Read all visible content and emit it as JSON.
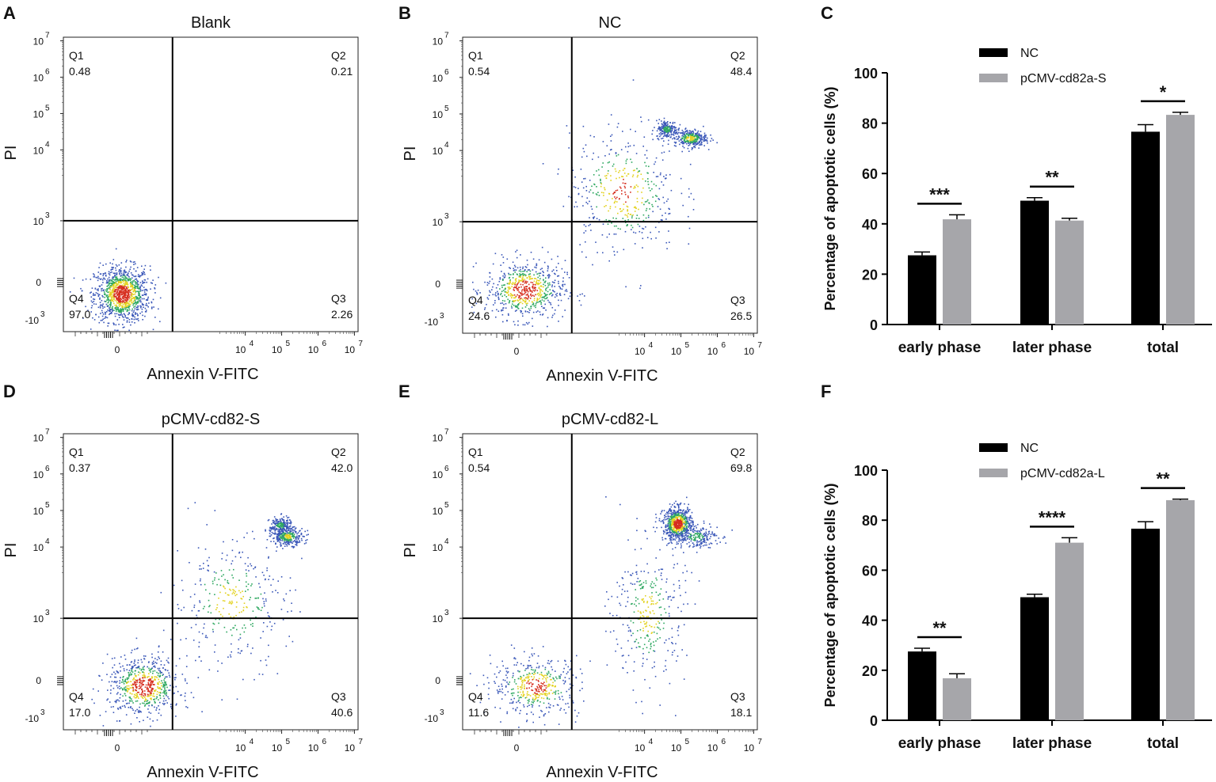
{
  "chart_data": [
    {
      "type": "scatter",
      "panel": "A",
      "title": "Blank",
      "xlabel": "Annexin V-FITC",
      "ylabel": "PI",
      "quadrants": [
        {
          "name": "Q1",
          "value": "0.48"
        },
        {
          "name": "Q2",
          "value": "0.21"
        },
        {
          "name": "Q3",
          "value": "2.26"
        },
        {
          "name": "Q4",
          "value": "97.0"
        }
      ],
      "clusters": [
        {
          "cx": 0.6,
          "cy": 0.05,
          "sx": 0.38,
          "sy": 0.38,
          "n": 1100
        }
      ]
    },
    {
      "type": "scatter",
      "panel": "B",
      "title": "NC",
      "xlabel": "Annexin V-FITC",
      "ylabel": "PI",
      "quadrants": [
        {
          "name": "Q1",
          "value": "0.54"
        },
        {
          "name": "Q2",
          "value": "48.4"
        },
        {
          "name": "Q3",
          "value": "26.5"
        },
        {
          "name": "Q4",
          "value": "24.6"
        }
      ],
      "clusters": [
        {
          "cx": 0.7,
          "cy": 0.2,
          "sx": 0.55,
          "sy": 0.4,
          "n": 650
        },
        {
          "cx": 4.6,
          "cy": 4.6,
          "sx": 0.15,
          "sy": 0.12,
          "n": 200
        },
        {
          "cx": 5.25,
          "cy": 4.35,
          "sx": 0.22,
          "sy": 0.12,
          "n": 320
        },
        {
          "cx": 3.4,
          "cy": 2.9,
          "sx": 0.75,
          "sy": 0.85,
          "n": 420
        }
      ]
    },
    {
      "type": "bar",
      "panel": "C",
      "ylabel": "Percentage of apoptotic cells (%)",
      "categories": [
        "early phase",
        "later phase",
        "total"
      ],
      "ylim": [
        0,
        100
      ],
      "yticks": [
        "0",
        "20",
        "40",
        "60",
        "80",
        "100"
      ],
      "series": [
        {
          "name": "NC",
          "color": "#000000",
          "values": [
            27.5,
            49.2,
            76.6
          ],
          "errors": [
            1.3,
            1.2,
            2.8
          ]
        },
        {
          "name": "pCMV-cd82a-S",
          "color": "#a6a6aa",
          "values": [
            41.8,
            41.3,
            83.3
          ],
          "errors": [
            1.8,
            0.9,
            1.0
          ]
        }
      ],
      "significance": [
        "***",
        "**",
        "*"
      ]
    },
    {
      "type": "scatter",
      "panel": "D",
      "title": "pCMV-cd82-S",
      "xlabel": "Annexin V-FITC",
      "ylabel": "PI",
      "quadrants": [
        {
          "name": "Q1",
          "value": "0.37"
        },
        {
          "name": "Q2",
          "value": "42.0"
        },
        {
          "name": "Q3",
          "value": "40.6"
        },
        {
          "name": "Q4",
          "value": "17.0"
        }
      ],
      "clusters": [
        {
          "cx": 1.2,
          "cy": 0.2,
          "sx": 0.5,
          "sy": 0.4,
          "n": 650
        },
        {
          "cx": 4.95,
          "cy": 4.6,
          "sx": 0.15,
          "sy": 0.12,
          "n": 200
        },
        {
          "cx": 5.15,
          "cy": 4.3,
          "sx": 0.22,
          "sy": 0.12,
          "n": 300
        },
        {
          "cx": 3.6,
          "cy": 2.5,
          "sx": 0.8,
          "sy": 0.9,
          "n": 320
        }
      ]
    },
    {
      "type": "scatter",
      "panel": "E",
      "title": "pCMV-cd82-L",
      "xlabel": "Annexin V-FITC",
      "ylabel": "PI",
      "quadrants": [
        {
          "name": "Q1",
          "value": "0.54"
        },
        {
          "name": "Q2",
          "value": "69.8"
        },
        {
          "name": "Q3",
          "value": "18.1"
        },
        {
          "name": "Q4",
          "value": "11.6"
        }
      ],
      "clusters": [
        {
          "cx": 1.0,
          "cy": 0.2,
          "sx": 0.6,
          "sy": 0.4,
          "n": 450
        },
        {
          "cx": 4.9,
          "cy": 4.65,
          "sx": 0.2,
          "sy": 0.22,
          "n": 700
        },
        {
          "cx": 5.4,
          "cy": 4.3,
          "sx": 0.3,
          "sy": 0.15,
          "n": 200
        },
        {
          "cx": 4.1,
          "cy": 2.2,
          "sx": 0.5,
          "sy": 1.0,
          "n": 320
        }
      ]
    },
    {
      "type": "bar",
      "panel": "F",
      "ylabel": "Percentage of apoptotic cells (%)",
      "categories": [
        "early phase",
        "later phase",
        "total"
      ],
      "ylim": [
        0,
        100
      ],
      "yticks": [
        "0",
        "20",
        "40",
        "60",
        "80",
        "100"
      ],
      "series": [
        {
          "name": "NC",
          "color": "#000000",
          "values": [
            27.5,
            49.2,
            76.6
          ],
          "errors": [
            1.3,
            1.2,
            2.8
          ]
        },
        {
          "name": "pCMV-cd82a-L",
          "color": "#a6a6aa",
          "values": [
            16.8,
            71.0,
            88.0
          ],
          "errors": [
            1.8,
            2.0,
            0.4
          ]
        }
      ],
      "significance": [
        "**",
        "****",
        "**"
      ]
    }
  ],
  "panel_letters": [
    "A",
    "B",
    "C",
    "D",
    "E",
    "F"
  ],
  "flow_axis": {
    "y_tick_bases": [
      "10",
      "10",
      "10",
      "10",
      "10"
    ],
    "y_tick_exps": [
      "7",
      "6",
      "5",
      "4",
      "3"
    ],
    "y_zero": "0",
    "y_neg_base": "-10",
    "y_neg_exp": "3",
    "x_zero": "0",
    "x_tick_bases": [
      "10",
      "10",
      "10",
      "10"
    ],
    "x_tick_exps": [
      "4",
      "5",
      "6",
      "7"
    ]
  },
  "colors": {
    "nc": "#000000",
    "treatment": "#a6a6aa",
    "dot_low": "#3a57b8",
    "dot_mid": "#2ea860",
    "dot_high": "#e3d21e",
    "dot_peak": "#d62e1f"
  }
}
